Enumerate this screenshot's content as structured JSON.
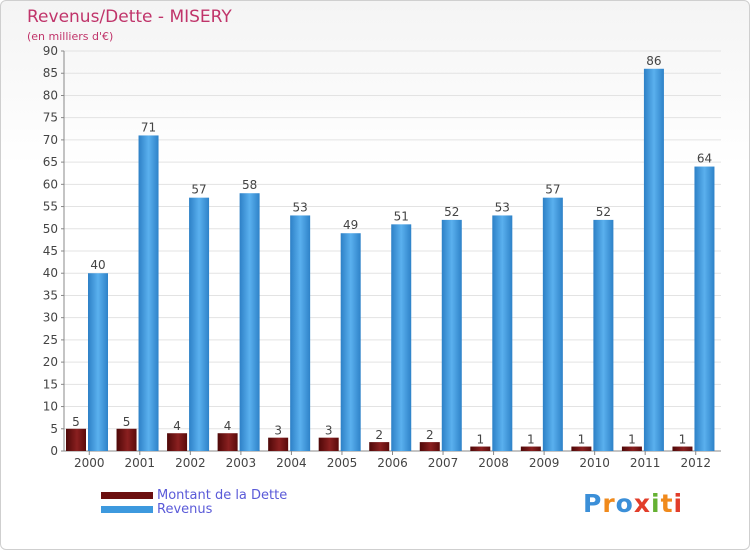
{
  "header": {
    "title": "Revenus/Dette - MISERY",
    "subtitle": "(en milliers d'€)"
  },
  "legend": {
    "items": [
      {
        "label": "Montant de la Dette",
        "color": "#6b0f0f"
      },
      {
        "label": "Revenus",
        "color": "#3d99de"
      }
    ]
  },
  "logo": {
    "text": "Proxiti",
    "letters": [
      "P",
      "r",
      "o",
      "x",
      "i",
      "t",
      "i"
    ],
    "letter_colors": [
      "#3b8fd8",
      "#f08a1c",
      "#3b8fd8",
      "#e23d2a",
      "#65b133",
      "#f08a1c",
      "#e23d2a"
    ]
  },
  "colors": {
    "title": "#c0346a",
    "axis": "#888888",
    "grid": "#e3e3e3",
    "tick_label": "#444444"
  },
  "chart_data": {
    "type": "bar",
    "title": "Revenus/Dette - MISERY",
    "subtitle": "(en milliers d'€)",
    "xlabel": "",
    "ylabel": "",
    "ylim": [
      0,
      90
    ],
    "yticks": [
      0,
      5,
      10,
      15,
      20,
      25,
      30,
      35,
      40,
      45,
      50,
      55,
      60,
      65,
      70,
      75,
      80,
      85,
      90
    ],
    "grid": true,
    "legend_position": "bottom-left",
    "categories": [
      "2000",
      "2001",
      "2002",
      "2003",
      "2004",
      "2005",
      "2006",
      "2007",
      "2008",
      "2009",
      "2010",
      "2011",
      "2012"
    ],
    "series": [
      {
        "name": "Montant de la Dette",
        "color": "#6b0f0f",
        "values": [
          5,
          5,
          4,
          4,
          3,
          3,
          2,
          2,
          1,
          1,
          1,
          1,
          1
        ]
      },
      {
        "name": "Revenus",
        "color": "#3d99de",
        "values": [
          40,
          71,
          57,
          58,
          53,
          49,
          51,
          52,
          53,
          57,
          52,
          86,
          64
        ]
      }
    ]
  }
}
